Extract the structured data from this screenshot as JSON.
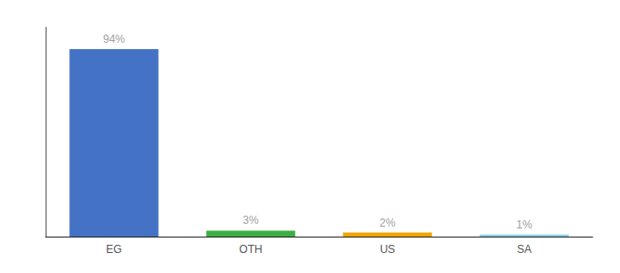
{
  "chart_data": {
    "type": "bar",
    "categories": [
      "EG",
      "OTH",
      "US",
      "SA"
    ],
    "values": [
      94,
      3,
      2,
      1
    ],
    "value_labels": [
      "94%",
      "3%",
      "2%",
      "1%"
    ],
    "colors": [
      "#4472C4",
      "#3CB043",
      "#F0A500",
      "#87CEEB"
    ],
    "ylim": [
      0,
      105
    ],
    "data_labels": true,
    "tick_labels": "x",
    "grid": false
  }
}
